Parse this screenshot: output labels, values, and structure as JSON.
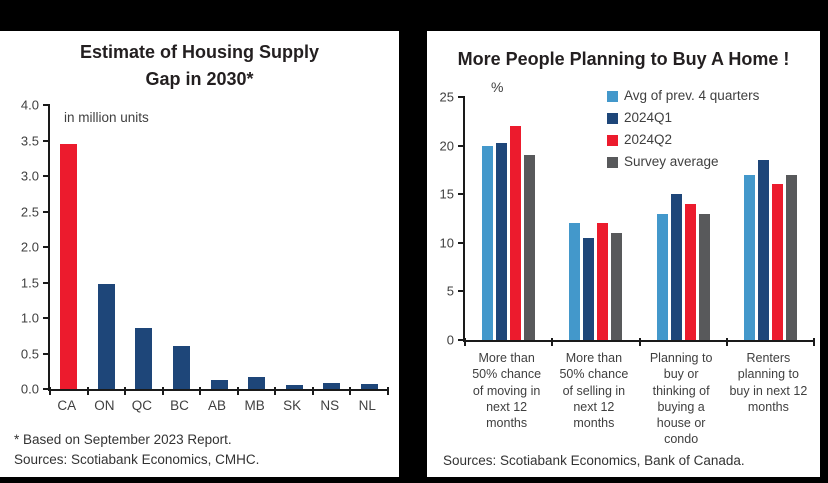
{
  "colors": {
    "red": "#EC1B2D",
    "navy": "#1E4679",
    "light_blue": "#4398CB",
    "gray": "#58595B",
    "axis": "#1A1A1A",
    "title_text": "#231F20",
    "panel_bg": "#ffffff",
    "frame_bg": "#000000"
  },
  "chart_data": [
    {
      "type": "bar",
      "title": "Estimate of Housing Supply Gap in 2030*",
      "unit_annotation": "in million units",
      "categories": [
        "CA",
        "ON",
        "QC",
        "BC",
        "AB",
        "MB",
        "SK",
        "NS",
        "NL"
      ],
      "values": [
        3.45,
        1.48,
        0.86,
        0.61,
        0.13,
        0.17,
        0.06,
        0.08,
        0.07
      ],
      "bar_colors": [
        "#EC1B2D",
        "#1E4679",
        "#1E4679",
        "#1E4679",
        "#1E4679",
        "#1E4679",
        "#1E4679",
        "#1E4679",
        "#1E4679"
      ],
      "xlabel": "",
      "ylabel": "",
      "ylim": [
        0,
        4
      ],
      "yticks": [
        "0.0",
        "0.5",
        "1.0",
        "1.5",
        "2.0",
        "2.5",
        "3.0",
        "3.5",
        "4.0"
      ],
      "grid": false,
      "footnote": "* Based on September 2023 Report.",
      "source": "Sources: Scotiabank Economics, CMHC."
    },
    {
      "type": "grouped-bar",
      "title": "More People Planning to Buy A Home !",
      "unit_annotation": "%",
      "categories": [
        "More than 50% chance of moving in next 12 months",
        "More than 50% chance of selling in next 12 months",
        "Planning to buy or thinking of buying a house or condo",
        "Renters planning to buy in next 12 months"
      ],
      "series": [
        {
          "name": "Avg of prev. 4 quarters",
          "color": "#4398CB",
          "values": [
            20,
            12,
            13,
            17
          ]
        },
        {
          "name": "2024Q1",
          "color": "#1E4679",
          "values": [
            20.3,
            10.5,
            15,
            18.5
          ]
        },
        {
          "name": "2024Q2",
          "color": "#EC1B2D",
          "values": [
            22,
            12,
            14,
            16
          ]
        },
        {
          "name": "Survey average",
          "color": "#58595B",
          "values": [
            19,
            11,
            13,
            17
          ]
        }
      ],
      "xlabel": "",
      "ylabel": "%",
      "ylim": [
        0,
        25
      ],
      "yticks": [
        "0",
        "5",
        "10",
        "15",
        "20",
        "25"
      ],
      "grid": false,
      "legend_position": "top-right",
      "source": "Sources: Scotiabank Economics, Bank of Canada."
    }
  ]
}
